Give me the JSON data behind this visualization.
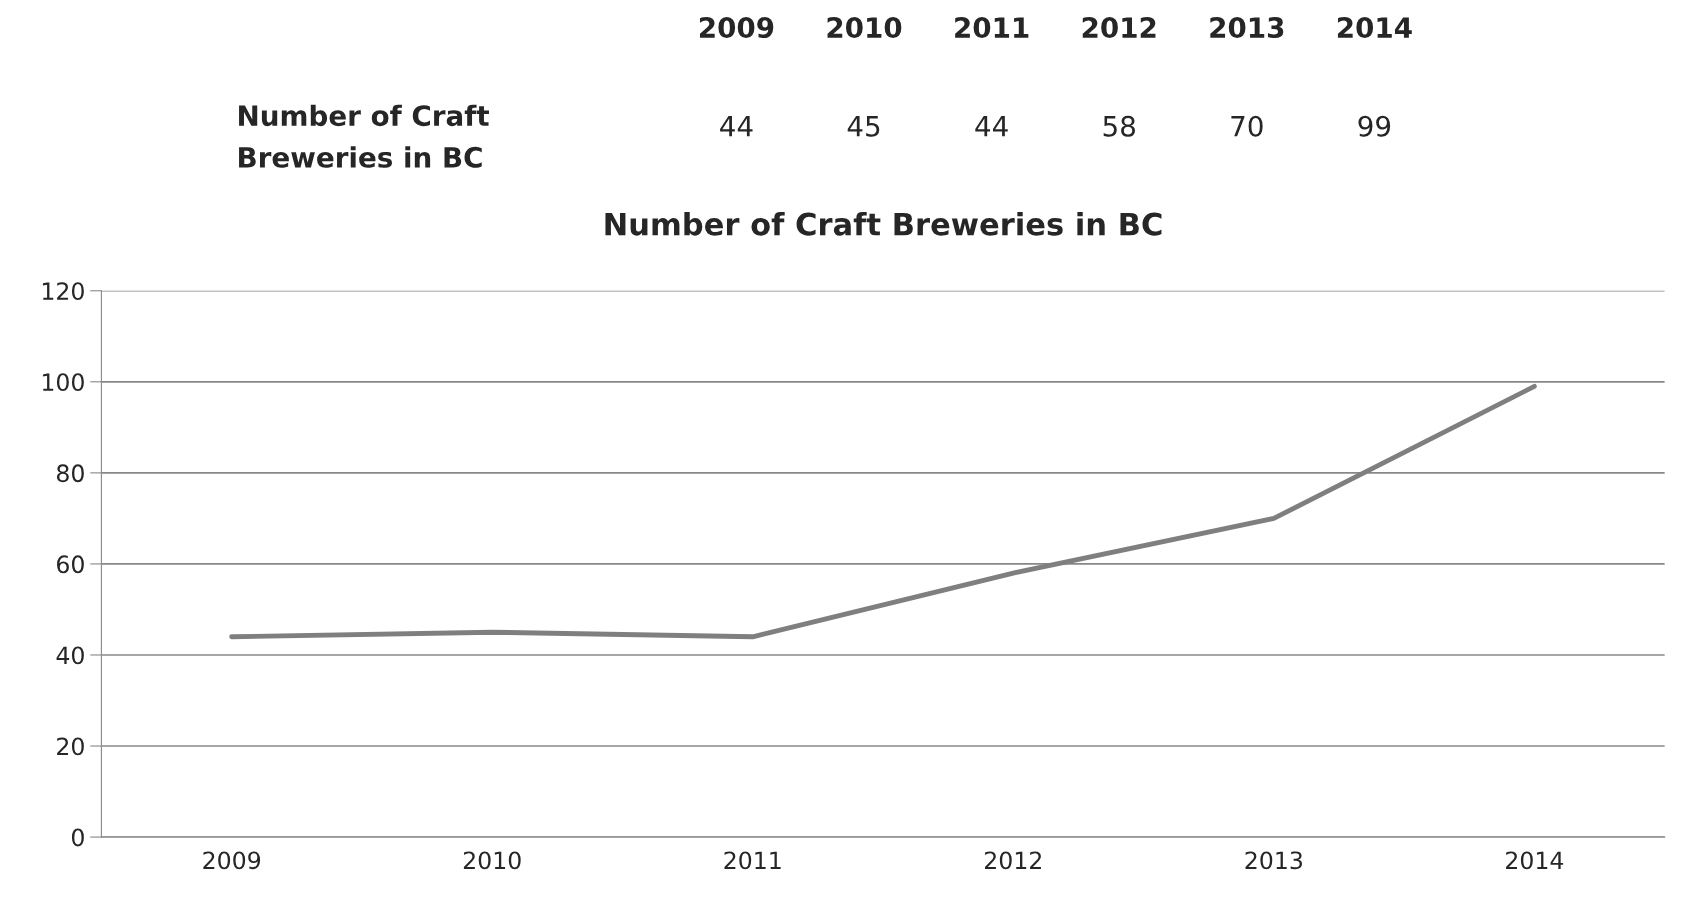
{
  "chart_data": [
    {
      "type": "heatmap",
      "categories": [
        "2009",
        "2010",
        "2011",
        "2012",
        "2013",
        "2014"
      ],
      "y_categories": [
        "Number of Craft Breweries in BC"
      ],
      "cells": [
        [
          44,
          45,
          44,
          58,
          70,
          99
        ]
      ],
      "data_labels": true
    },
    {
      "type": "line",
      "title": "Number of Craft Breweries in BC",
      "categories": [
        "2009",
        "2010",
        "2011",
        "2012",
        "2013",
        "2014"
      ],
      "series": [
        {
          "color": "#7f7f7f",
          "values": [
            44,
            45,
            44,
            58,
            70,
            99
          ]
        }
      ],
      "ylim": [
        0,
        120
      ],
      "yticks": [
        0,
        20,
        40,
        60,
        80,
        100,
        120
      ],
      "grid": "y",
      "legend": false,
      "marker": "none",
      "line_style": "solid"
    }
  ]
}
